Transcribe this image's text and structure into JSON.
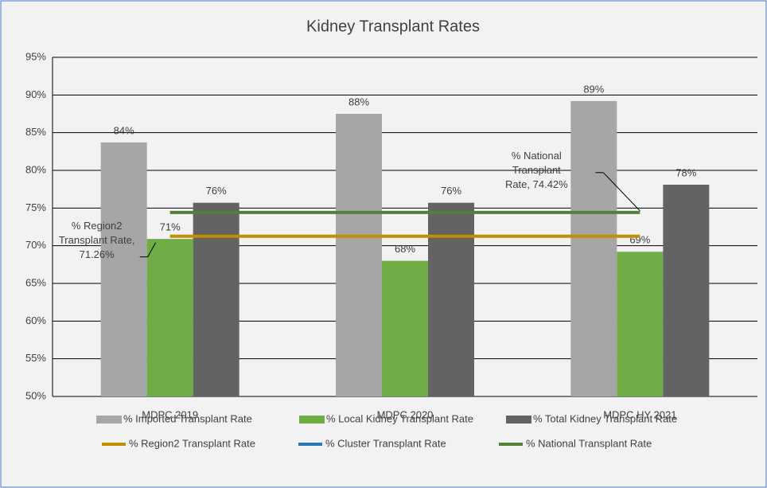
{
  "chart_data": {
    "type": "bar",
    "title": "Kidney Transplant Rates",
    "categories": [
      "MDPC 2019",
      "MDPC 2020",
      "MDPC HY 2021"
    ],
    "ylim": [
      50,
      95
    ],
    "yticks": [
      {
        "value": 50,
        "label": "50%"
      },
      {
        "value": 55,
        "label": "55%"
      },
      {
        "value": 60,
        "label": "60%"
      },
      {
        "value": 65,
        "label": "65%"
      },
      {
        "value": 70,
        "label": "70%"
      },
      {
        "value": 75,
        "label": "75%"
      },
      {
        "value": 80,
        "label": "80%"
      },
      {
        "value": 85,
        "label": "85%"
      },
      {
        "value": 90,
        "label": "90%"
      },
      {
        "value": 95,
        "label": "95%"
      }
    ],
    "grid": true,
    "series": [
      {
        "name": "% Imported Transplant Rate",
        "type": "bar",
        "color": "#a6a6a6",
        "values": [
          83.7,
          87.5,
          89.2
        ],
        "value_labels": [
          "84%",
          "88%",
          "89%"
        ]
      },
      {
        "name": "% Local Kidney Transplant Rate",
        "type": "bar",
        "color": "#70ad47",
        "values": [
          70.9,
          68.0,
          69.2
        ],
        "value_labels": [
          "71%",
          "68%",
          "69%"
        ]
      },
      {
        "name": "% Total Kidney Transplant Rate",
        "type": "bar",
        "color": "#636363",
        "values": [
          75.7,
          75.7,
          78.1
        ],
        "value_labels": [
          "76%",
          "76%",
          "78%"
        ]
      },
      {
        "name": "% Region2 Transplant Rate",
        "type": "line",
        "color": "#bf9000",
        "values": [
          71.26,
          71.26,
          71.26
        ],
        "value_labels": [
          "% Region2 Transplant Rate, 71.26%",
          null,
          null
        ]
      },
      {
        "name": "% Cluster Transplant Rate",
        "type": "line",
        "color": "#2e75b6",
        "values": [
          null,
          null,
          null
        ]
      },
      {
        "name": "% National Transplant Rate",
        "type": "line",
        "color": "#548235",
        "values": [
          74.42,
          74.42,
          74.42
        ],
        "value_labels": [
          null,
          null,
          "% National Transplant Rate, 74.42%"
        ]
      }
    ]
  }
}
